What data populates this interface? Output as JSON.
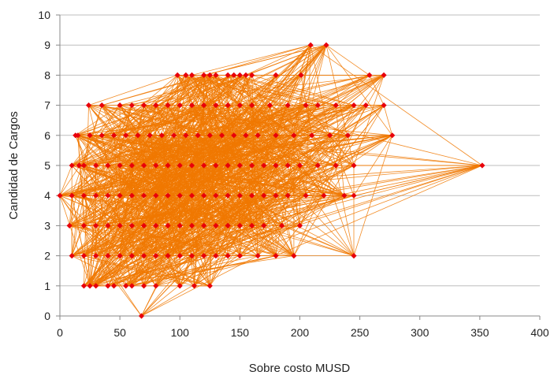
{
  "chart_data": {
    "type": "scatter",
    "title": "",
    "xlabel": "Sobre costo MUSD",
    "ylabel": "Candidad de Cargos",
    "xlim": [
      0,
      400
    ],
    "ylim": [
      0,
      10
    ],
    "x_ticks": [
      0,
      50,
      100,
      150,
      200,
      250,
      300,
      350,
      400
    ],
    "y_ticks": [
      0,
      1,
      2,
      3,
      4,
      5,
      6,
      7,
      8,
      9,
      10
    ],
    "grid": "horizontal",
    "legend": "none",
    "connected": true,
    "marker": "diamond",
    "colors": {
      "line": "#f07800",
      "marker": "#e8000a",
      "grid": "#bdbdbd",
      "axis": "#888888"
    },
    "series": [
      {
        "points": [
          [
            0,
            4
          ],
          [
            13,
            6
          ],
          [
            16,
            5
          ],
          [
            68,
            0
          ],
          [
            20,
            1
          ],
          [
            25,
            1
          ],
          [
            30,
            1
          ],
          [
            40,
            1
          ],
          [
            45,
            1
          ],
          [
            55,
            1
          ],
          [
            60,
            1
          ],
          [
            70,
            1
          ],
          [
            80,
            1
          ],
          [
            100,
            1
          ],
          [
            112,
            1
          ],
          [
            125,
            1
          ],
          [
            10,
            2
          ],
          [
            20,
            2
          ],
          [
            30,
            2
          ],
          [
            40,
            2
          ],
          [
            50,
            2
          ],
          [
            60,
            2
          ],
          [
            70,
            2
          ],
          [
            80,
            2
          ],
          [
            90,
            2
          ],
          [
            100,
            2
          ],
          [
            110,
            2
          ],
          [
            120,
            2
          ],
          [
            130,
            2
          ],
          [
            140,
            2
          ],
          [
            150,
            2
          ],
          [
            165,
            2
          ],
          [
            180,
            2
          ],
          [
            195,
            2
          ],
          [
            245,
            2
          ],
          [
            8,
            3
          ],
          [
            20,
            3
          ],
          [
            30,
            3
          ],
          [
            40,
            3
          ],
          [
            50,
            3
          ],
          [
            60,
            3
          ],
          [
            70,
            3
          ],
          [
            80,
            3
          ],
          [
            90,
            3
          ],
          [
            100,
            3
          ],
          [
            110,
            3
          ],
          [
            120,
            3
          ],
          [
            130,
            3
          ],
          [
            140,
            3
          ],
          [
            150,
            3
          ],
          [
            160,
            3
          ],
          [
            170,
            3
          ],
          [
            185,
            3
          ],
          [
            200,
            3
          ],
          [
            10,
            4
          ],
          [
            20,
            4
          ],
          [
            30,
            4
          ],
          [
            40,
            4
          ],
          [
            50,
            4
          ],
          [
            60,
            4
          ],
          [
            70,
            4
          ],
          [
            80,
            4
          ],
          [
            90,
            4
          ],
          [
            100,
            4
          ],
          [
            110,
            4
          ],
          [
            120,
            4
          ],
          [
            130,
            4
          ],
          [
            140,
            4
          ],
          [
            150,
            4
          ],
          [
            160,
            4
          ],
          [
            170,
            4
          ],
          [
            180,
            4
          ],
          [
            190,
            4
          ],
          [
            205,
            4
          ],
          [
            220,
            4
          ],
          [
            237,
            4
          ],
          [
            245,
            4
          ],
          [
            10,
            5
          ],
          [
            20,
            5
          ],
          [
            30,
            5
          ],
          [
            40,
            5
          ],
          [
            50,
            5
          ],
          [
            60,
            5
          ],
          [
            70,
            5
          ],
          [
            80,
            5
          ],
          [
            90,
            5
          ],
          [
            100,
            5
          ],
          [
            110,
            5
          ],
          [
            120,
            5
          ],
          [
            130,
            5
          ],
          [
            140,
            5
          ],
          [
            150,
            5
          ],
          [
            160,
            5
          ],
          [
            170,
            5
          ],
          [
            180,
            5
          ],
          [
            190,
            5
          ],
          [
            200,
            5
          ],
          [
            215,
            5
          ],
          [
            230,
            5
          ],
          [
            245,
            5
          ],
          [
            352,
            5
          ],
          [
            15,
            6
          ],
          [
            25,
            6
          ],
          [
            35,
            6
          ],
          [
            45,
            6
          ],
          [
            55,
            6
          ],
          [
            65,
            6
          ],
          [
            75,
            6
          ],
          [
            85,
            6
          ],
          [
            95,
            6
          ],
          [
            105,
            6
          ],
          [
            115,
            6
          ],
          [
            125,
            6
          ],
          [
            135,
            6
          ],
          [
            145,
            6
          ],
          [
            155,
            6
          ],
          [
            165,
            6
          ],
          [
            180,
            6
          ],
          [
            195,
            6
          ],
          [
            210,
            6
          ],
          [
            225,
            6
          ],
          [
            240,
            6
          ],
          [
            277,
            6
          ],
          [
            24,
            7
          ],
          [
            35,
            7
          ],
          [
            50,
            7
          ],
          [
            60,
            7
          ],
          [
            70,
            7
          ],
          [
            80,
            7
          ],
          [
            90,
            7
          ],
          [
            100,
            7
          ],
          [
            110,
            7
          ],
          [
            120,
            7
          ],
          [
            130,
            7
          ],
          [
            140,
            7
          ],
          [
            150,
            7
          ],
          [
            160,
            7
          ],
          [
            175,
            7
          ],
          [
            190,
            7
          ],
          [
            205,
            7
          ],
          [
            215,
            7
          ],
          [
            230,
            7
          ],
          [
            245,
            7
          ],
          [
            255,
            7
          ],
          [
            270,
            7
          ],
          [
            98,
            8
          ],
          [
            105,
            8
          ],
          [
            110,
            8
          ],
          [
            120,
            8
          ],
          [
            125,
            8
          ],
          [
            130,
            8
          ],
          [
            140,
            8
          ],
          [
            145,
            8
          ],
          [
            150,
            8
          ],
          [
            155,
            8
          ],
          [
            160,
            8
          ],
          [
            180,
            8
          ],
          [
            201,
            8
          ],
          [
            258,
            8
          ],
          [
            270,
            8
          ],
          [
            209,
            9
          ],
          [
            222,
            9
          ]
        ]
      }
    ]
  }
}
